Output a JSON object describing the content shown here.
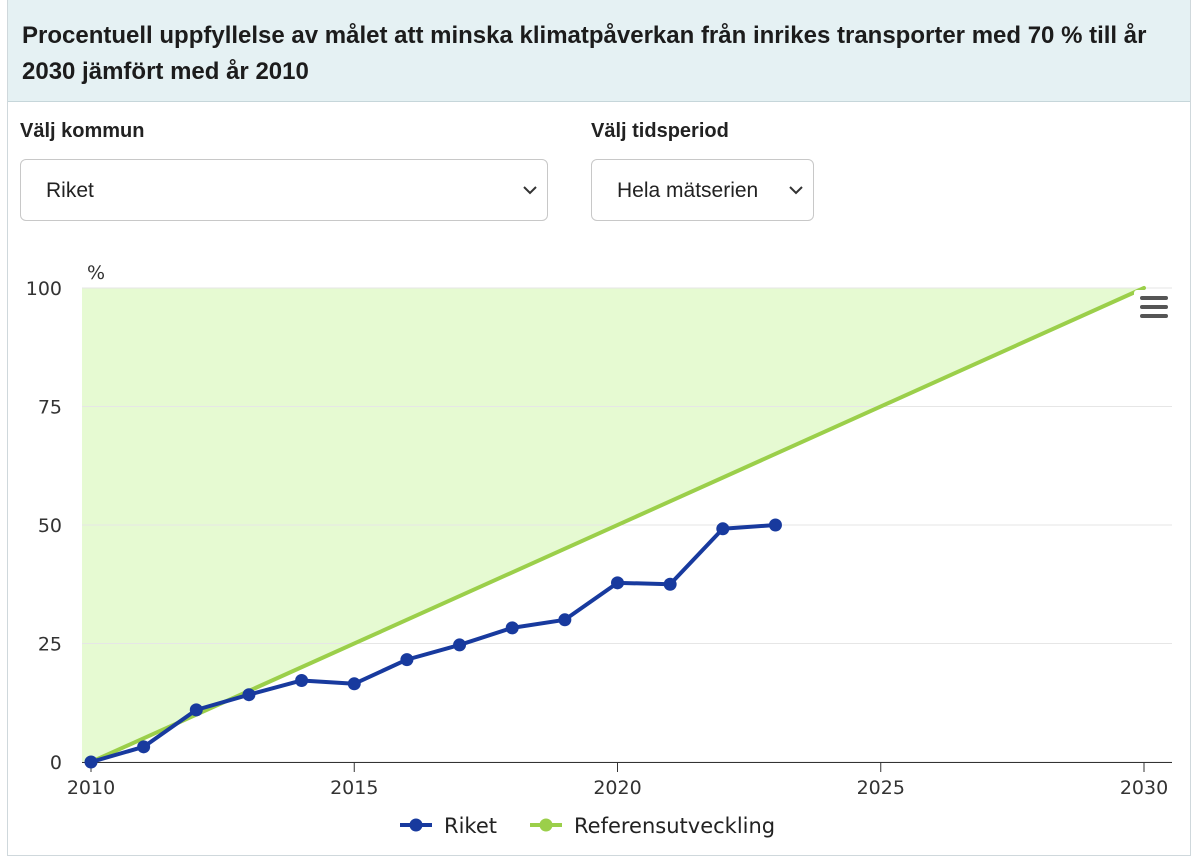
{
  "header": {
    "title": "Procentuell uppfyllelse av målet att minska klimatpåverkan från inrikes transporter med 70 % till år 2030 jämfört med år 2010"
  },
  "controls": {
    "kommun_label": "Välj kommun",
    "kommun_value": "Riket",
    "period_label": "Välj tidsperiod",
    "period_value": "Hela mätserien"
  },
  "menu": {
    "icon": "hamburger-menu-icon"
  },
  "chart_data": {
    "type": "line",
    "ylabel": "%",
    "xlim": [
      2010,
      2030
    ],
    "ylim": [
      0,
      100
    ],
    "x_ticks": [
      2010,
      2015,
      2020,
      2025,
      2030
    ],
    "y_ticks": [
      0,
      25,
      50,
      75,
      100
    ],
    "grid": true,
    "legend_position": "bottom-center",
    "target_area": {
      "color": "#e6fad2",
      "range_y": [
        0,
        100
      ]
    },
    "series": [
      {
        "name": "Riket",
        "color": "#183a9e",
        "markers": true,
        "x": [
          2010,
          2011,
          2012,
          2013,
          2014,
          2015,
          2016,
          2017,
          2018,
          2019,
          2020,
          2021,
          2022,
          2023
        ],
        "y": [
          0,
          3.2,
          11,
          14.2,
          17.2,
          16.5,
          21.6,
          24.7,
          28.3,
          30,
          37.8,
          37.5,
          49.2,
          50
        ]
      },
      {
        "name": "Referensutveckling",
        "color": "#9bcf4a",
        "markers": false,
        "x": [
          2010,
          2030
        ],
        "y": [
          0,
          100
        ]
      }
    ]
  }
}
